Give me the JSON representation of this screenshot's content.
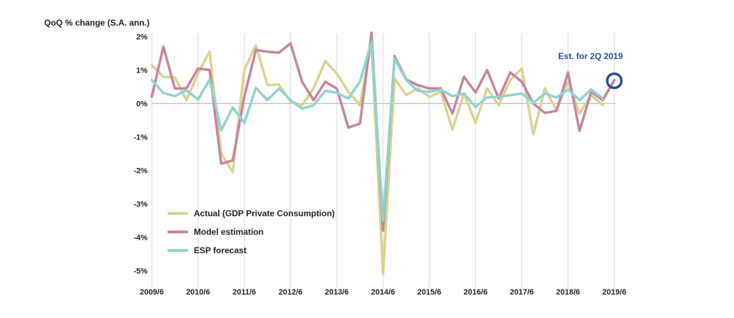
{
  "chart_data": {
    "type": "line",
    "ylabel": "QoQ % change (S.A. ann.)",
    "ylim": [
      -5.3,
      2.1
    ],
    "y_ticks": [
      2,
      1,
      0,
      -1,
      -2,
      -3,
      -4,
      -5
    ],
    "y_tick_labels": [
      "2%",
      "1%",
      "0%",
      "-1%",
      "-2%",
      "-3%",
      "-4%",
      "-5%"
    ],
    "x_ticks": [
      "2009/6",
      "2010/6",
      "2011/6",
      "2012/6",
      "2013/6",
      "2014/6",
      "2015/6",
      "2016/6",
      "2017/6",
      "2018/6",
      "2019/6"
    ],
    "x_start": 0,
    "x_end": 40,
    "grid": "vertical",
    "legend_position": "bottom-left",
    "series": [
      {
        "name": "Actual (GDP Private Consumption)",
        "color": "#d9d38e",
        "values": [
          1.15,
          0.8,
          0.78,
          0.1,
          0.9,
          1.55,
          -1.5,
          -2.05,
          1.0,
          1.75,
          0.55,
          0.57,
          0.05,
          -0.05,
          0.45,
          1.27,
          0.9,
          0.35,
          -0.05,
          1.85,
          -5.1,
          0.75,
          0.25,
          0.45,
          0.2,
          0.35,
          -0.78,
          0.3,
          -0.58,
          0.45,
          -0.05,
          0.7,
          1.05,
          -0.92,
          0.45,
          -0.2,
          0.65,
          -0.3,
          0.25,
          -0.05
        ]
      },
      {
        "name": "Model estimation",
        "color": "#c4849e",
        "values": [
          0.2,
          1.7,
          0.45,
          0.45,
          1.05,
          1.0,
          -1.8,
          -1.7,
          0.2,
          1.6,
          1.55,
          1.52,
          1.8,
          0.65,
          0.1,
          0.65,
          0.45,
          -0.72,
          -0.6,
          2.12,
          -3.8,
          1.42,
          0.72,
          0.55,
          0.45,
          0.45,
          -0.3,
          0.8,
          0.33,
          1.0,
          0.15,
          0.93,
          0.65,
          0.0,
          -0.28,
          -0.22,
          0.93,
          -0.82,
          0.35,
          0.1,
          0.7
        ]
      },
      {
        "name": "ESP forecast",
        "color": "#8fd3cf",
        "values": [
          0.7,
          0.32,
          0.22,
          0.4,
          0.12,
          0.72,
          -0.8,
          -0.12,
          -0.58,
          0.47,
          0.1,
          0.45,
          0.1,
          -0.15,
          -0.05,
          0.38,
          0.32,
          0.15,
          0.65,
          1.85,
          -3.5,
          1.35,
          0.7,
          0.38,
          0.35,
          0.42,
          0.22,
          0.3,
          -0.1,
          0.18,
          0.2,
          0.25,
          0.3,
          0.02,
          0.3,
          0.18,
          0.42,
          0.1,
          0.42,
          0.15
        ]
      }
    ],
    "annotation": {
      "text": "Est. for 2Q 2019",
      "x": 40,
      "y": 0.7,
      "color": "#2a4d96"
    }
  }
}
